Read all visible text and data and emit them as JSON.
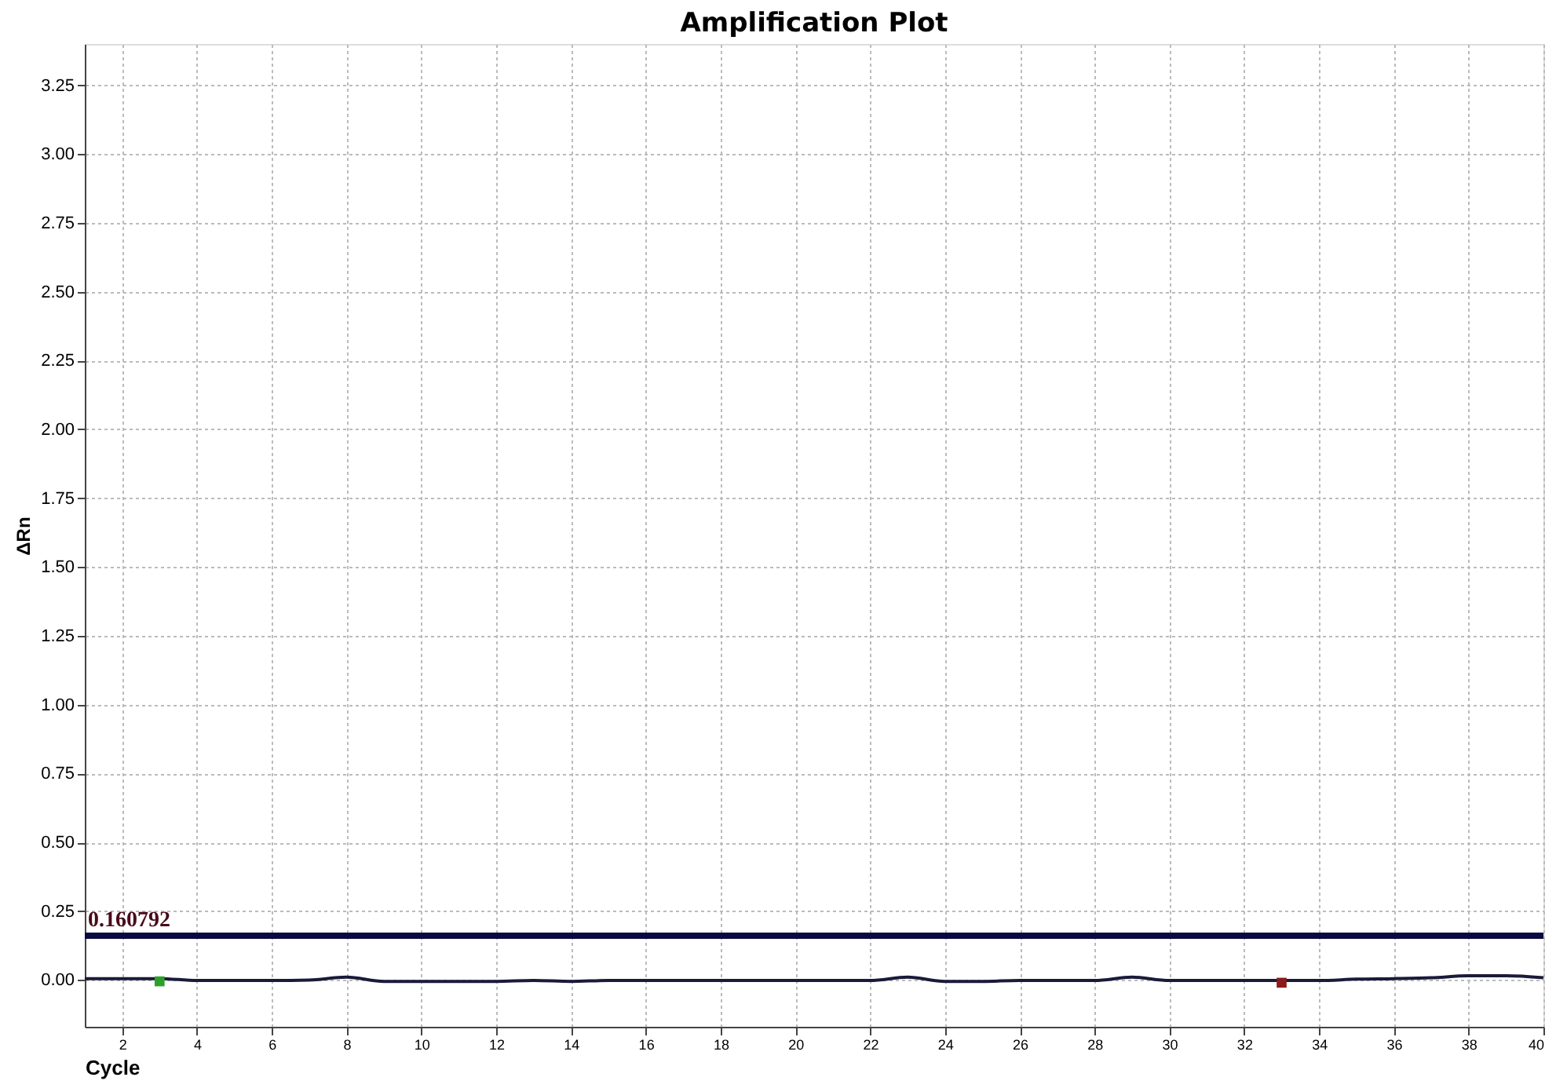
{
  "chart_data": {
    "type": "line",
    "title": "Amplification Plot",
    "xlabel": "Cycle",
    "ylabel": "ΔRn",
    "xlim": [
      1,
      40
    ],
    "xticks": [
      2,
      4,
      6,
      8,
      10,
      12,
      14,
      16,
      18,
      20,
      22,
      24,
      26,
      28,
      30,
      32,
      34,
      36,
      38,
      40
    ],
    "ylim": [
      -0.17,
      3.4
    ],
    "yticks": [
      {
        "value": 0,
        "label": "0.00"
      },
      0.25,
      {
        "value": 0.5,
        "label": "0.50"
      },
      0.75,
      {
        "value": 1,
        "label": "1.00"
      },
      1.25,
      {
        "value": 1.5,
        "label": "1.50"
      },
      1.75,
      {
        "value": 2,
        "label": "2.00"
      },
      2.25,
      {
        "value": 2.5,
        "label": "2.50"
      },
      2.75,
      {
        "value": 3,
        "label": "3.00"
      },
      3.25
    ],
    "grid": true,
    "series": [
      {
        "color": "#1a1a3a",
        "line_style": "solid",
        "x": [
          1,
          2,
          3,
          4,
          5,
          6,
          7,
          8,
          9,
          10,
          11,
          12,
          13,
          14,
          15,
          16,
          17,
          18,
          19,
          20,
          21,
          22,
          23,
          24,
          25,
          26,
          27,
          28,
          29,
          30,
          31,
          32,
          33,
          34,
          35,
          36,
          37,
          38,
          39,
          40
        ],
        "values": [
          0.005,
          0.005,
          0.005,
          -0.002,
          -0.002,
          -0.002,
          0,
          0.01,
          -0.005,
          -0.005,
          -0.005,
          -0.005,
          -0.002,
          -0.005,
          -0.002,
          -0.002,
          -0.002,
          -0.002,
          -0.002,
          -0.002,
          -0.002,
          -0.002,
          0.01,
          -0.005,
          -0.005,
          -0.002,
          -0.002,
          -0.002,
          0.01,
          -0.002,
          -0.002,
          -0.002,
          -0.002,
          -0.002,
          0.003,
          0.005,
          0.008,
          0.015,
          0.015,
          0.008
        ]
      },
      {
        "type": "scatter",
        "color": "#2ca02c",
        "marker": "square",
        "x": [
          3
        ],
        "values": [
          -0.005
        ]
      },
      {
        "type": "scatter",
        "color": "#8b1a1a",
        "marker": "square",
        "x": [
          33
        ],
        "values": [
          -0.01
        ]
      }
    ],
    "ref_lines": [
      {
        "axis": "y",
        "value": 0.160792,
        "label": "0.160792",
        "color": "#0a0a40",
        "line_style": "solid"
      }
    ]
  }
}
